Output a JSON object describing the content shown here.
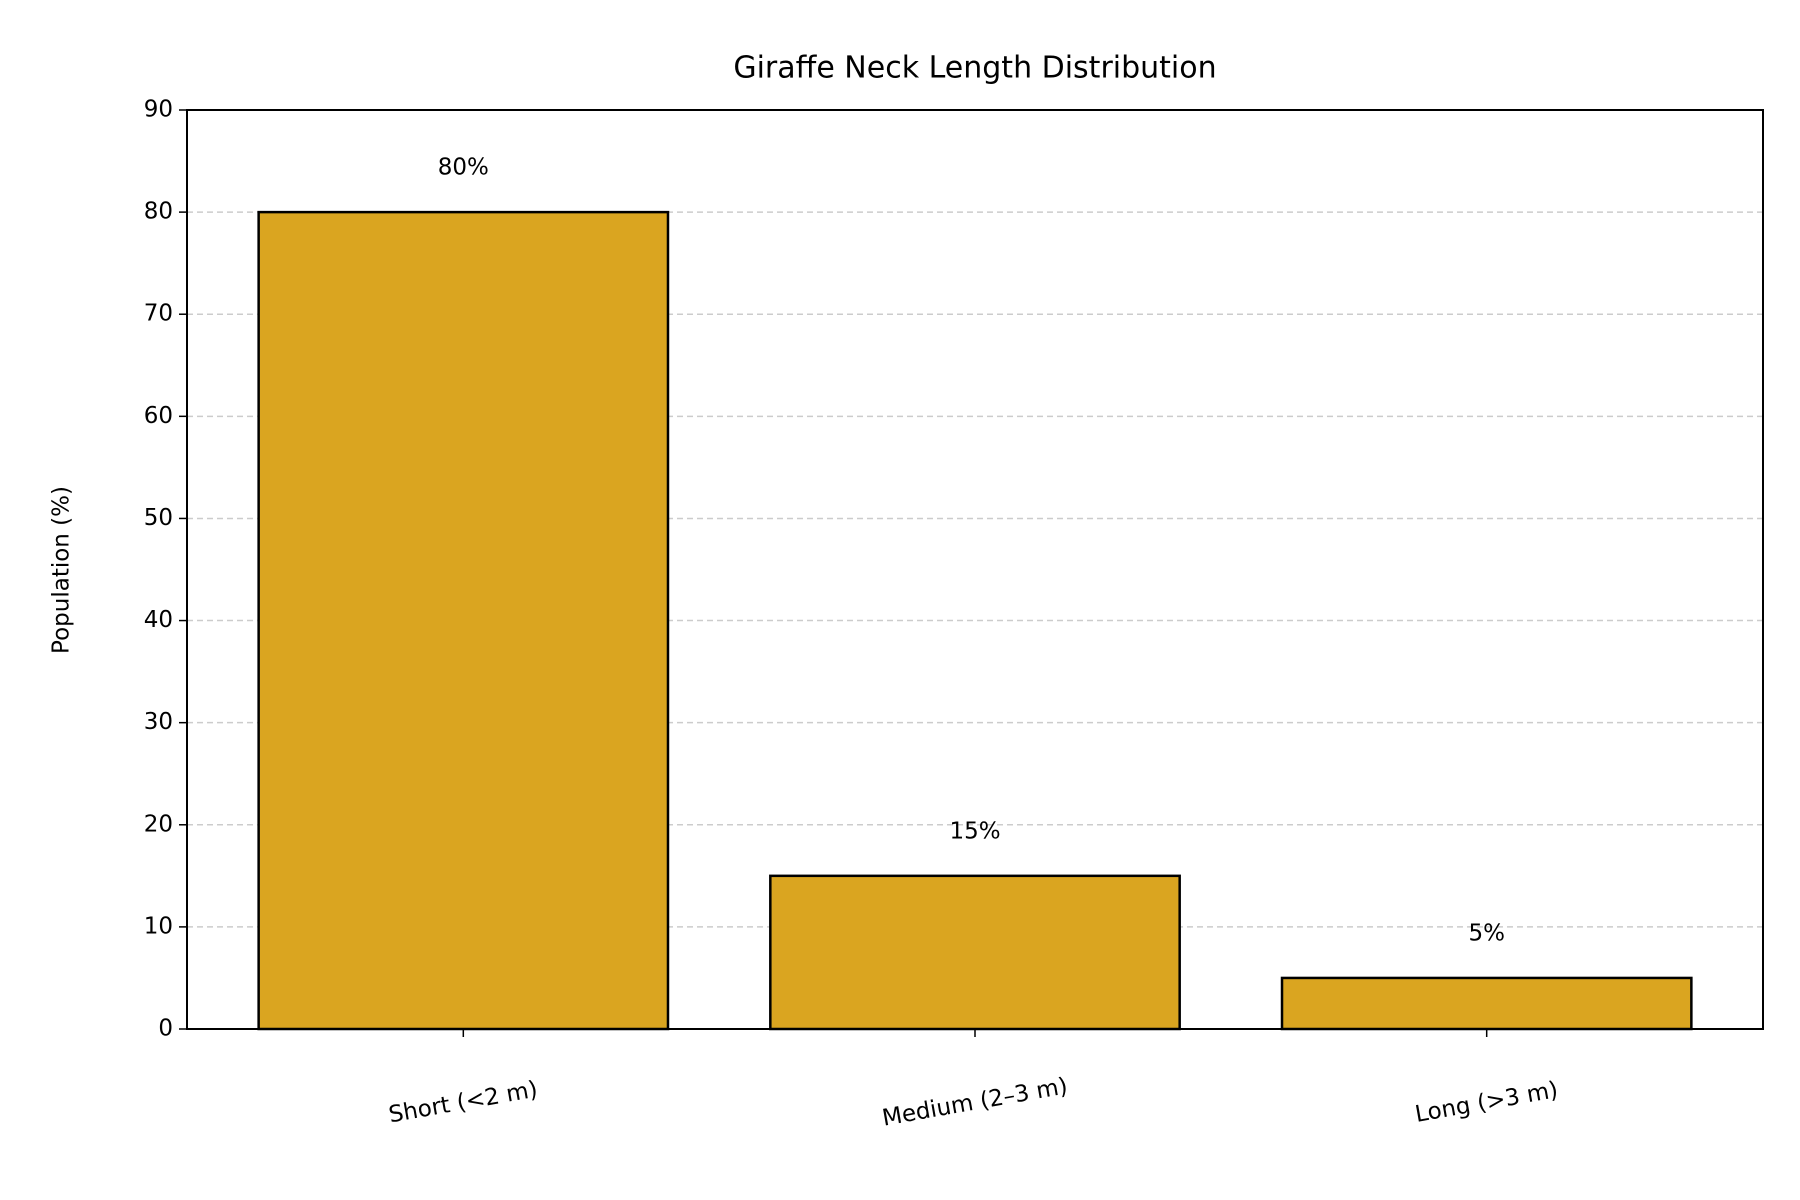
{
  "chart_data": {
    "type": "bar",
    "title": "Giraffe Neck Length Distribution",
    "y_label": "Population (%)",
    "categories": [
      "Short (<2 m)",
      "Medium (2–3 m)",
      "Long (>3 m)"
    ],
    "values": [
      80,
      15,
      5
    ],
    "value_labels": [
      "80%",
      "15%",
      "5%"
    ],
    "color": "#DAA520",
    "ylim": [
      0,
      90
    ],
    "yticks": [
      0,
      10,
      20,
      30,
      40,
      50,
      60,
      70,
      80,
      90
    ],
    "grid": true
  }
}
